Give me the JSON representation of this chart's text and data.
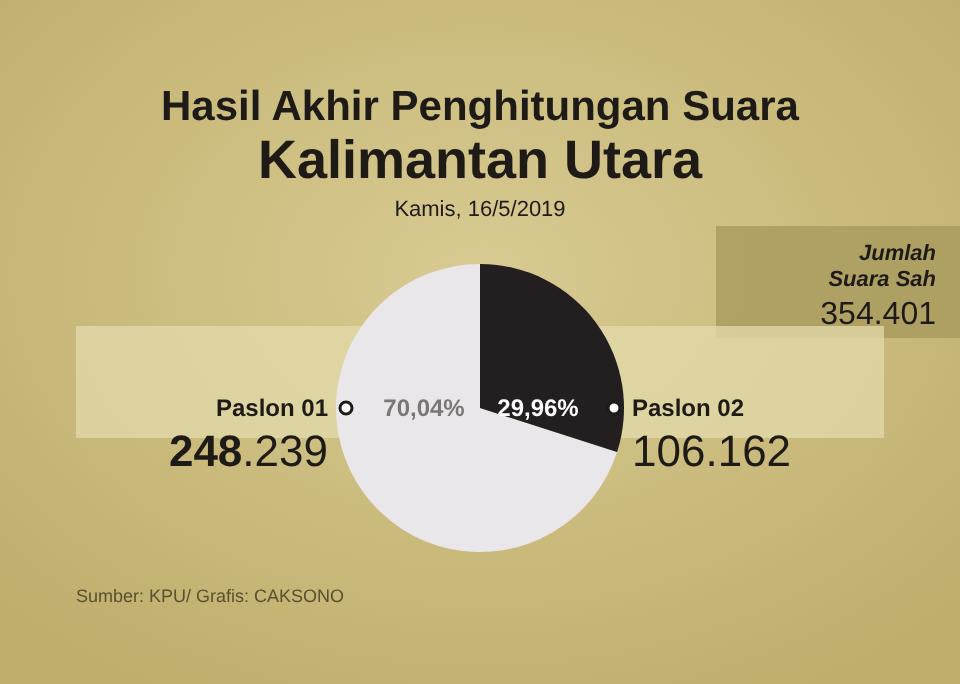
{
  "chart_data": {
    "type": "pie",
    "title": "Hasil Akhir Penghitungan Suara",
    "subtitle": "Kalimantan Utara",
    "categories": [
      "Paslon 01",
      "Paslon 02"
    ],
    "values": [
      248239,
      106162
    ],
    "value_labels": [
      "248.239",
      "106.162"
    ],
    "colors": [
      "#e9e7ea",
      "#231f20"
    ],
    "annotations": [
      "Kamis, 16/5/2019",
      "Jumlah Suara Sah",
      "354.401",
      "70,04%",
      "29,96%",
      "Sumber: KPU/ Grafis: CAKSONO"
    ]
  }
}
